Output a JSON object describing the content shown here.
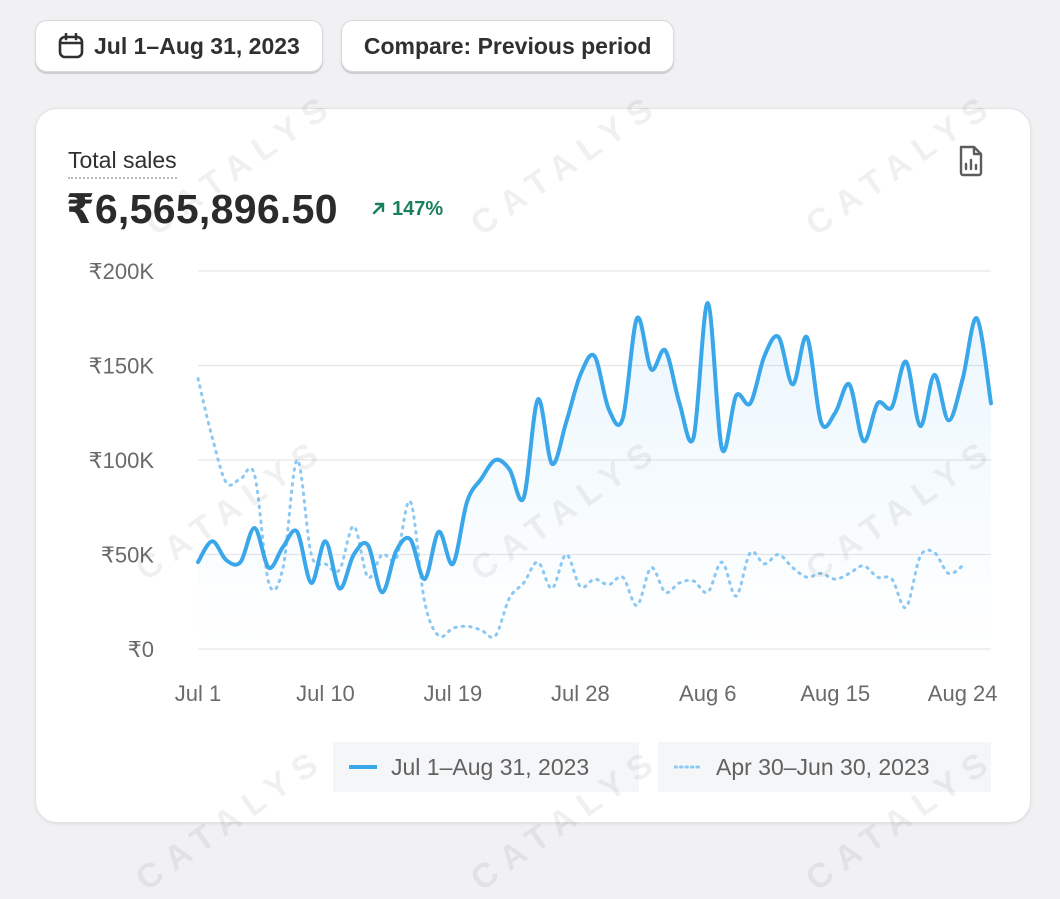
{
  "toolbar": {
    "date_range_label": "Jul 1–Aug 31, 2023",
    "compare_label": "Compare: Previous period"
  },
  "card": {
    "metric_title": "Total sales",
    "metric_value": "₹6,565,896.50",
    "change_label": "147%",
    "accent_color": "#3aa7ea",
    "positive_color": "#1a7f5a"
  },
  "watermark": "CATALYS",
  "legend": {
    "current_label": "Jul 1–Aug 31, 2023",
    "previous_label": "Apr 30–Jun 30, 2023"
  },
  "chart_data": {
    "type": "line",
    "ylim": [
      0,
      200000
    ],
    "y_ticks": [
      0,
      50000,
      100000,
      150000,
      200000
    ],
    "y_tick_labels": [
      "₹0",
      "₹50K",
      "₹100K",
      "₹150K",
      "₹200K"
    ],
    "x_tick_labels": [
      "Jul 1",
      "Jul 10",
      "Jul 19",
      "Jul 28",
      "Aug 6",
      "Aug 15",
      "Aug 24"
    ],
    "x_tick_indices": [
      0,
      9,
      18,
      27,
      36,
      45,
      54
    ],
    "grid": true,
    "legend_position": "bottom-right",
    "series": [
      {
        "name": "Jul 1–Aug 31, 2023",
        "style": "solid",
        "color": "#3aa7ea",
        "values": [
          46000,
          57000,
          47000,
          46000,
          64000,
          43000,
          54000,
          62000,
          35000,
          57000,
          32000,
          50000,
          55000,
          30000,
          52000,
          58000,
          37000,
          62000,
          45000,
          78000,
          90000,
          100000,
          95000,
          80000,
          132000,
          98000,
          120000,
          145000,
          155000,
          127000,
          122000,
          175000,
          148000,
          158000,
          130000,
          112000,
          183000,
          106000,
          134000,
          130000,
          155000,
          165000,
          140000,
          165000,
          120000,
          125000,
          140000,
          110000,
          130000,
          128000,
          152000,
          118000,
          145000,
          121000,
          143000,
          175000,
          130000
        ]
      },
      {
        "name": "Apr 30–Jun 30, 2023",
        "style": "dotted",
        "color": "#8cc8f2",
        "values": [
          143000,
          112000,
          88000,
          90000,
          92000,
          35000,
          43000,
          100000,
          50000,
          45000,
          42000,
          65000,
          38000,
          50000,
          48000,
          78000,
          25000,
          7000,
          11000,
          12000,
          10000,
          7000,
          27000,
          35000,
          46000,
          32000,
          50000,
          33000,
          37000,
          34000,
          38000,
          23000,
          43000,
          30000,
          35000,
          36000,
          30000,
          46000,
          28000,
          51000,
          45000,
          50000,
          43000,
          38000,
          40000,
          37000,
          40000,
          44000,
          38000,
          37000,
          22000,
          49000,
          51000,
          40000,
          44000
        ]
      }
    ]
  }
}
